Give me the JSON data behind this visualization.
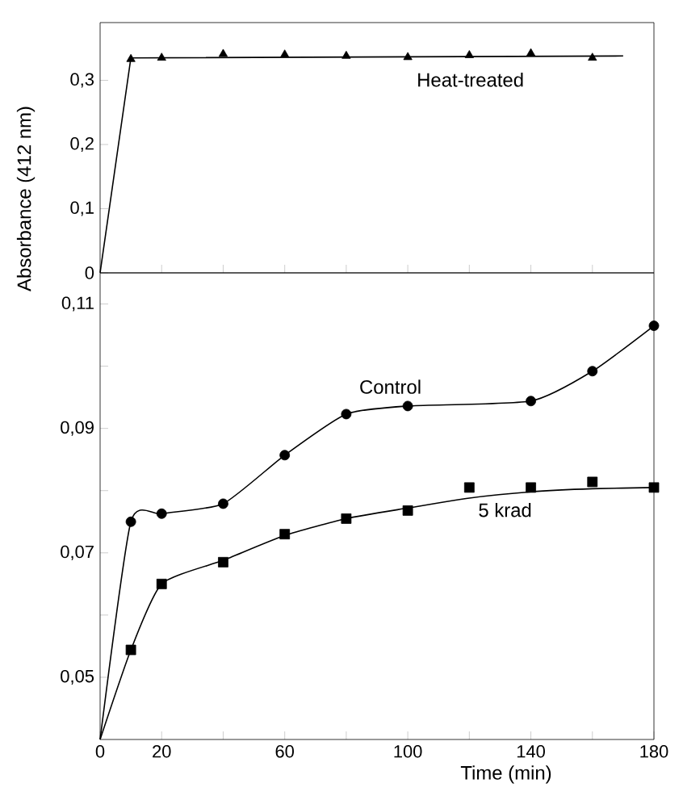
{
  "chart_data": [
    {
      "type": "line",
      "ylabel": "Absorbance (412 nm)",
      "xlim": [
        0,
        180
      ],
      "ylim": [
        0,
        0.39
      ],
      "xticks": [
        {
          "value": 20,
          "label": null
        },
        {
          "value": 40,
          "label": null
        },
        {
          "value": 60,
          "label": null
        },
        {
          "value": 80,
          "label": null
        },
        {
          "value": 100,
          "label": null
        },
        {
          "value": 120,
          "label": null
        },
        {
          "value": 140,
          "label": null
        },
        {
          "value": 160,
          "label": null
        }
      ],
      "yticks": [
        0,
        {
          "value": 0.1,
          "label": "0,1"
        },
        {
          "value": 0.2,
          "label": "0,2"
        },
        {
          "value": 0.3,
          "label": "0,3"
        }
      ],
      "tick_labels": "y",
      "series": [
        {
          "marker": "none",
          "color": "#000000",
          "x": [
            0,
            10,
            170
          ],
          "values": [
            0,
            0.335,
            0.338
          ]
        },
        {
          "type": "scatter",
          "name": "Heat-treated",
          "marker": "triangle",
          "color": "#000000",
          "x": [
            10,
            20,
            40,
            60,
            80,
            100,
            120,
            140,
            160
          ],
          "values": [
            0.333,
            0.335,
            0.341,
            0.34,
            0.338,
            0.336,
            0.339,
            0.342,
            0.335
          ]
        }
      ]
    },
    {
      "type": "line",
      "xlabel": "Time (min)",
      "xlim": [
        0,
        180
      ],
      "ylim": [
        0.04,
        0.115
      ],
      "xticks": [
        0,
        20,
        {
          "value": 40,
          "label": null
        },
        60,
        {
          "value": 80,
          "label": null
        },
        100,
        {
          "value": 120,
          "label": null
        },
        140,
        {
          "value": 160,
          "label": null
        },
        180
      ],
      "yticks": [
        {
          "value": 0.05,
          "label": "0,05"
        },
        {
          "value": 0.06,
          "label": null
        },
        {
          "value": 0.07,
          "label": "0,07"
        },
        {
          "value": 0.08,
          "label": null
        },
        {
          "value": 0.09,
          "label": "0,09"
        },
        {
          "value": 0.1,
          "label": null
        },
        {
          "value": 0.11,
          "label": "0,11"
        }
      ],
      "series": [
        {
          "marker": "none",
          "color": "#000000",
          "x": [
            0,
            10,
            20,
            40,
            60,
            80,
            100,
            140,
            160,
            180
          ],
          "values": [
            0.04,
            0.075,
            0.0763,
            0.0779,
            0.0857,
            0.0923,
            0.0936,
            0.0944,
            0.0992,
            0.1065
          ]
        },
        {
          "type": "scatter",
          "name": "Control",
          "marker": "circle",
          "color": "#000000",
          "x": [
            10,
            20,
            40,
            60,
            80,
            100,
            140,
            160,
            180
          ],
          "values": [
            0.075,
            0.0763,
            0.0779,
            0.0857,
            0.0923,
            0.0936,
            0.0944,
            0.0992,
            0.1065
          ]
        },
        {
          "marker": "none",
          "color": "#000000",
          "x": [
            0,
            10,
            20,
            40,
            60,
            80,
            100,
            120,
            140,
            160,
            180
          ],
          "values": [
            0.04,
            0.0544,
            0.065,
            0.0688,
            0.0728,
            0.0755,
            0.0772,
            0.0788,
            0.0798,
            0.0803,
            0.0805
          ]
        },
        {
          "type": "scatter",
          "name": "5 krad",
          "marker": "square",
          "color": "#000000",
          "x": [
            10,
            20,
            40,
            60,
            80,
            100,
            120,
            140,
            160,
            180
          ],
          "values": [
            0.0544,
            0.065,
            0.0685,
            0.073,
            0.0755,
            0.0768,
            0.0805,
            0.0805,
            0.0814,
            0.0805
          ]
        }
      ]
    }
  ]
}
